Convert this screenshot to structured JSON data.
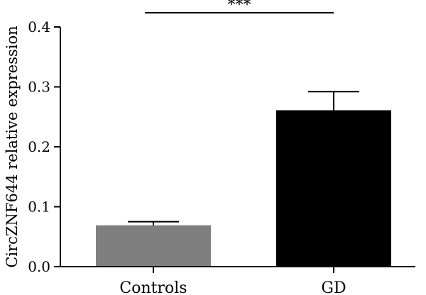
{
  "chart_data": {
    "type": "bar",
    "categories": [
      "Controls",
      "GD"
    ],
    "values": [
      0.069,
      0.261
    ],
    "errors": [
      0.006,
      0.031
    ],
    "bar_colors": [
      "#7f7f7f",
      "#000000"
    ],
    "ylabel": "CircZNF644 relative expression",
    "ylim": [
      0,
      0.4
    ],
    "yticks": [
      "0.0",
      "0.1",
      "0.2",
      "0.3",
      "0.4"
    ],
    "grid": false,
    "significance": {
      "between": [
        "Controls",
        "GD"
      ],
      "label": "***"
    }
  }
}
